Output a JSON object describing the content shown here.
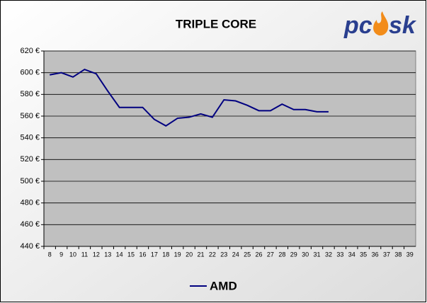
{
  "chart_data": {
    "type": "line",
    "title": "TRIPLE CORE",
    "logo": [
      "pc",
      "sk"
    ],
    "categories": [
      "8",
      "9",
      "10",
      "11",
      "12",
      "13",
      "14",
      "15",
      "16",
      "17",
      "18",
      "19",
      "20",
      "21",
      "22",
      "23",
      "24",
      "25",
      "26",
      "27",
      "28",
      "29",
      "30",
      "31",
      "32",
      "33",
      "34",
      "35",
      "36",
      "37",
      "38",
      "39"
    ],
    "series": [
      {
        "name": "AMD",
        "color": "#000080",
        "values": [
          598,
          600,
          596,
          603,
          599,
          583,
          568,
          568,
          568,
          557,
          551,
          558,
          559,
          562,
          559,
          575,
          574,
          570,
          565,
          565,
          571,
          566,
          566,
          564,
          564,
          null,
          null,
          null,
          null,
          null,
          null,
          null
        ]
      }
    ],
    "ylim": [
      440,
      620
    ],
    "yticks": [
      {
        "value": 440,
        "label": "440 €"
      },
      {
        "value": 460,
        "label": "460 €"
      },
      {
        "value": 480,
        "label": "480 €"
      },
      {
        "value": 500,
        "label": "500 €"
      },
      {
        "value": 520,
        "label": "520 €"
      },
      {
        "value": 540,
        "label": "540 €"
      },
      {
        "value": 560,
        "label": "560 €"
      },
      {
        "value": 580,
        "label": "580 €"
      },
      {
        "value": 600,
        "label": "600 €"
      },
      {
        "value": 620,
        "label": "620 €"
      }
    ],
    "grid": true,
    "legend": "bottom"
  }
}
